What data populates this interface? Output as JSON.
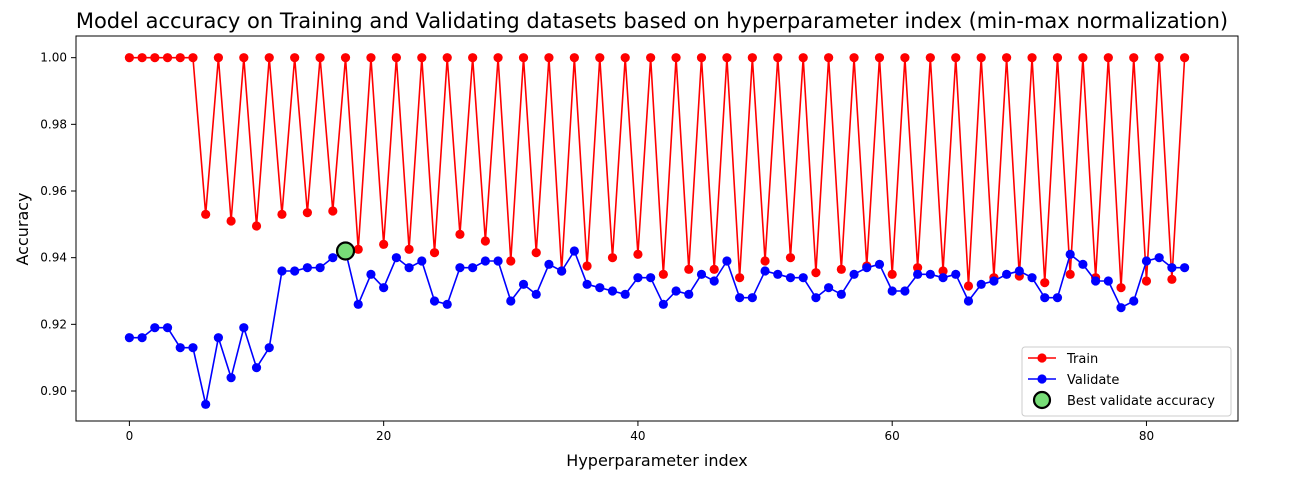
{
  "chart_data": {
    "type": "line",
    "title": "Model accuracy on Training and Validating datasets based on hyperparameter index (min-max normalization)",
    "xlabel": "Hyperparameter index",
    "ylabel": "Accuracy",
    "xlim": [
      -4.2,
      87.2
    ],
    "ylim": [
      0.891,
      1.0065
    ],
    "xticks": [
      0,
      20,
      40,
      60,
      80
    ],
    "yticks": [
      0.9,
      0.92,
      0.94,
      0.96,
      0.98,
      1.0
    ],
    "ytick_labels": [
      "0.90",
      "0.92",
      "0.94",
      "0.96",
      "0.98",
      "1.00"
    ],
    "grid": false,
    "legend_position": "lower-right",
    "x": [
      0,
      1,
      2,
      3,
      4,
      5,
      6,
      7,
      8,
      9,
      10,
      11,
      12,
      13,
      14,
      15,
      16,
      17,
      18,
      19,
      20,
      21,
      22,
      23,
      24,
      25,
      26,
      27,
      28,
      29,
      30,
      31,
      32,
      33,
      34,
      35,
      36,
      37,
      38,
      39,
      40,
      41,
      42,
      43,
      44,
      45,
      46,
      47,
      48,
      49,
      50,
      51,
      52,
      53,
      54,
      55,
      56,
      57,
      58,
      59,
      60,
      61,
      62,
      63,
      64,
      65,
      66,
      67,
      68,
      69,
      70,
      71,
      72,
      73,
      74,
      75,
      76,
      77,
      78,
      79,
      80,
      81,
      82,
      83
    ],
    "series": [
      {
        "name": "Train",
        "color": "#ff0000",
        "values": [
          1.0,
          1.0,
          1.0,
          1.0,
          1.0,
          1.0,
          0.953,
          1.0,
          0.951,
          1.0,
          0.9495,
          1.0,
          0.953,
          1.0,
          0.9535,
          1.0,
          0.954,
          1.0,
          0.9425,
          1.0,
          0.944,
          1.0,
          0.9425,
          1.0,
          0.9415,
          1.0,
          0.947,
          1.0,
          0.945,
          1.0,
          0.939,
          1.0,
          0.9415,
          1.0,
          0.936,
          1.0,
          0.9375,
          1.0,
          0.94,
          1.0,
          0.941,
          1.0,
          0.935,
          1.0,
          0.9365,
          1.0,
          0.9365,
          1.0,
          0.934,
          1.0,
          0.939,
          1.0,
          0.94,
          1.0,
          0.9355,
          1.0,
          0.9365,
          1.0,
          0.9375,
          1.0,
          0.935,
          1.0,
          0.937,
          1.0,
          0.936,
          1.0,
          0.9315,
          1.0,
          0.934,
          1.0,
          0.9345,
          1.0,
          0.9325,
          1.0,
          0.935,
          1.0,
          0.934,
          1.0,
          0.931,
          1.0,
          0.933,
          1.0,
          0.9335,
          1.0
        ]
      },
      {
        "name": "Validate",
        "color": "#0000ff",
        "values": [
          0.916,
          0.916,
          0.919,
          0.919,
          0.913,
          0.913,
          0.896,
          0.916,
          0.904,
          0.919,
          0.907,
          0.913,
          0.936,
          0.936,
          0.937,
          0.937,
          0.94,
          0.942,
          0.926,
          0.935,
          0.931,
          0.94,
          0.937,
          0.939,
          0.927,
          0.926,
          0.937,
          0.937,
          0.939,
          0.939,
          0.927,
          0.932,
          0.929,
          0.938,
          0.936,
          0.942,
          0.932,
          0.931,
          0.93,
          0.929,
          0.934,
          0.934,
          0.926,
          0.93,
          0.929,
          0.935,
          0.933,
          0.939,
          0.928,
          0.928,
          0.936,
          0.935,
          0.934,
          0.934,
          0.928,
          0.931,
          0.929,
          0.935,
          0.937,
          0.938,
          0.93,
          0.93,
          0.935,
          0.935,
          0.934,
          0.935,
          0.927,
          0.932,
          0.933,
          0.935,
          0.936,
          0.934,
          0.928,
          0.928,
          0.941,
          0.938,
          0.933,
          0.933,
          0.925,
          0.927,
          0.939,
          0.94,
          0.937,
          0.937
        ]
      }
    ],
    "highlight": {
      "name": "Best validate accuracy",
      "x": 17,
      "y": 0.942,
      "color": "#77dd77",
      "edge_color": "#000000"
    }
  }
}
